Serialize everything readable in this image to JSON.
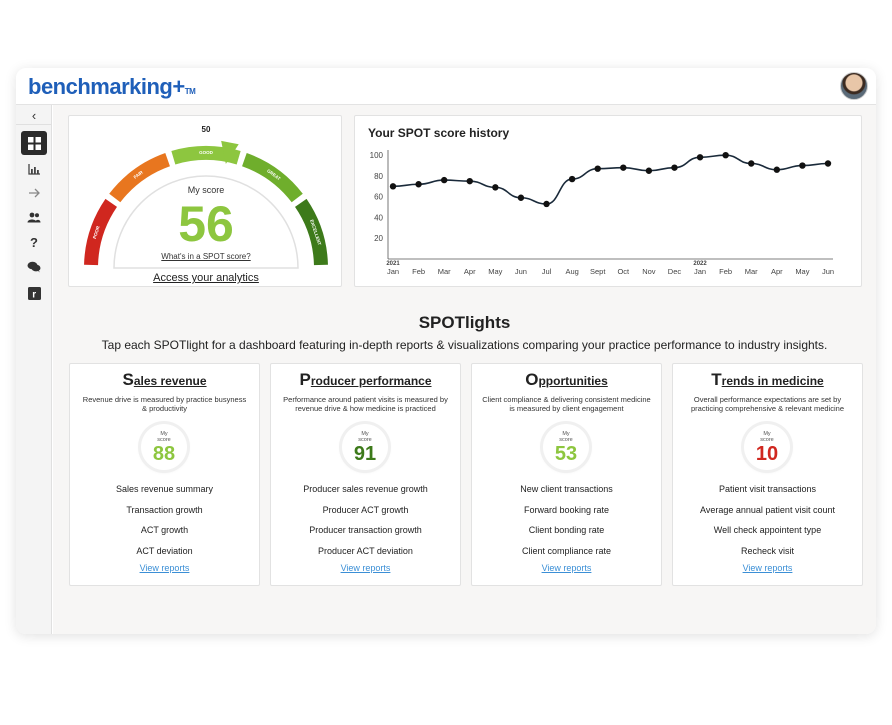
{
  "app": {
    "logo": "benchmarking+",
    "logo_tm": "TM"
  },
  "sidebar": {
    "collapse_icon": "chevron-left-icon",
    "items": [
      {
        "name": "dashboard",
        "icon": "grid-icon",
        "active": true
      },
      {
        "name": "analytics",
        "icon": "bar-chart-icon",
        "active": false
      },
      {
        "name": "next",
        "icon": "arrow-right-icon",
        "active": false
      },
      {
        "name": "users",
        "icon": "people-icon",
        "active": false
      },
      {
        "name": "help",
        "icon": "question-icon",
        "active": false
      },
      {
        "name": "chat",
        "icon": "chat-bubbles-icon",
        "active": false
      },
      {
        "name": "resources",
        "icon": "r-square-icon",
        "active": false
      }
    ]
  },
  "gauge": {
    "top_value": "50",
    "my_score_label": "My score",
    "score": "56",
    "score_fraction": 0.56,
    "whats_link": "What's in a SPOT score?",
    "access_link": "Access your analytics",
    "segments": [
      "POOR",
      "FAIR",
      "GOOD",
      "GREAT",
      "EXCELLENT"
    ],
    "colors": {
      "poor": "#d0271f",
      "fair": "#e8761f",
      "good": "#8dc63f",
      "great": "#6fae2c",
      "excellent": "#3d7a1a"
    }
  },
  "history": {
    "title": "Your SPOT score history"
  },
  "chart_data": {
    "type": "line",
    "title": "Your SPOT score history",
    "x": [
      "Jan",
      "Feb",
      "Mar",
      "Apr",
      "May",
      "Jun",
      "Jul",
      "Aug",
      "Sept",
      "Oct",
      "Nov",
      "Dec",
      "Jan",
      "Feb",
      "Mar",
      "Apr",
      "May",
      "Jun"
    ],
    "year_labels": [
      {
        "index": 0,
        "label": "2021"
      },
      {
        "index": 12,
        "label": "2022"
      }
    ],
    "series": [
      {
        "values": [
          70,
          72,
          76,
          75,
          69,
          59,
          53,
          77,
          87,
          88,
          85,
          88,
          98,
          100,
          92,
          86,
          90,
          92
        ]
      }
    ],
    "yticks": [
      20,
      40,
      60,
      80,
      100
    ],
    "ylim": [
      0,
      105
    ],
    "color": "#1a2a3a"
  },
  "spotlights": {
    "title": "SPOTlights",
    "subtitle": "Tap each SPOTlight for a dashboard featuring in-depth reports & visualizations comparing your practice performance to industry insights.",
    "score_label_1": "My",
    "score_label_2": "score",
    "view_reports": "View reports",
    "cards": [
      {
        "cap": "S",
        "rest": "ales revenue",
        "desc": "Revenue drive is measured by practice busyness & productivity",
        "score": "88",
        "color": "#8dc63f",
        "metrics": [
          "Sales revenue summary",
          "Transaction growth",
          "ACT growth",
          "ACT deviation"
        ]
      },
      {
        "cap": "P",
        "rest": "roducer performance",
        "desc": "Performance around patient visits is measured by revenue drive & how medicine is practiced",
        "score": "91",
        "color": "#3d7a1a",
        "metrics": [
          "Producer sales revenue growth",
          "Producer ACT growth",
          "Producer transaction growth",
          "Producer ACT deviation"
        ]
      },
      {
        "cap": "O",
        "rest": "pportunities",
        "desc": "Client compliance & delivering consistent medicine is measured by client engagement",
        "score": "53",
        "color": "#8dc63f",
        "metrics": [
          "New client transactions",
          "Forward booking rate",
          "Client bonding rate",
          "Client compliance rate"
        ]
      },
      {
        "cap": "T",
        "rest": "rends in medicine",
        "desc": "Overall performance expectations are set by practicing comprehensive & relevant medicine",
        "score": "10",
        "color": "#d0271f",
        "metrics": [
          "Patient visit transactions",
          "Average annual patient visit count",
          "Well check appointent type",
          "Recheck visit"
        ]
      }
    ]
  }
}
